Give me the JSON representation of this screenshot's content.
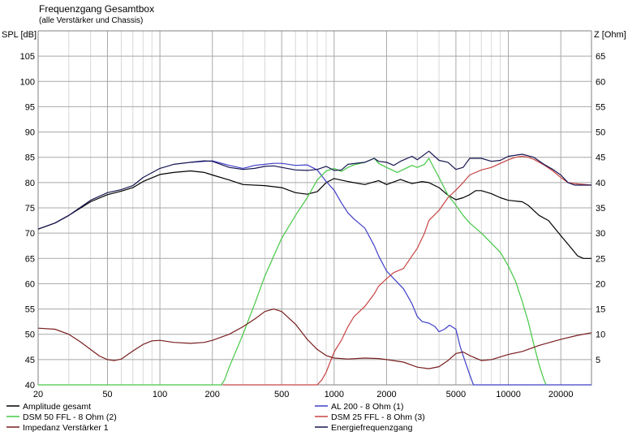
{
  "chart_data": {
    "type": "line",
    "title": "Frequenzgang Gesamtbox",
    "subtitle": "(alle Verstärker und Chassis)",
    "ylabel": "SPL [dB]",
    "y2label": "Z [Ohm]",
    "x_scale": "log",
    "xlim": [
      20,
      30000
    ],
    "ylim": [
      40,
      110
    ],
    "y2lim": [
      0,
      70
    ],
    "grid": true,
    "x_ticks": [
      20,
      50,
      100,
      200,
      500,
      1000,
      2000,
      5000,
      10000,
      20000
    ],
    "x_tick_labels": [
      "20",
      "50",
      "100",
      "200",
      "500",
      "1000",
      "2000",
      "5000",
      "10000",
      "20000"
    ],
    "y_ticks": [
      40,
      45,
      50,
      55,
      60,
      65,
      70,
      75,
      80,
      85,
      90,
      95,
      100,
      105
    ],
    "y_tick_labels": [
      "40",
      "45",
      "50",
      "55",
      "60",
      "65",
      "70",
      "75",
      "80",
      "85",
      "90",
      "95",
      "100",
      "105"
    ],
    "y2_tick_labels": [
      "5",
      "10",
      "15",
      "20",
      "25",
      "30",
      "35",
      "40",
      "45",
      "50",
      "55",
      "60",
      "65"
    ],
    "series": [
      {
        "name": "Amplitude gesamt",
        "color": "#000000",
        "axis": "left",
        "points": [
          [
            20,
            70.8
          ],
          [
            25,
            72
          ],
          [
            30,
            73.5
          ],
          [
            40,
            76.2
          ],
          [
            50,
            77.6
          ],
          [
            60,
            78.3
          ],
          [
            70,
            79
          ],
          [
            80,
            80.2
          ],
          [
            100,
            81.6
          ],
          [
            120,
            82
          ],
          [
            150,
            82.3
          ],
          [
            180,
            82
          ],
          [
            200,
            81.5
          ],
          [
            250,
            80.5
          ],
          [
            300,
            79.6
          ],
          [
            400,
            79.4
          ],
          [
            500,
            79
          ],
          [
            600,
            78
          ],
          [
            700,
            77.7
          ],
          [
            800,
            78.2
          ],
          [
            900,
            80
          ],
          [
            1000,
            80.8
          ],
          [
            1200,
            80.2
          ],
          [
            1500,
            79.6
          ],
          [
            1800,
            80.4
          ],
          [
            2000,
            79.6
          ],
          [
            2400,
            80.6
          ],
          [
            2800,
            79.8
          ],
          [
            3200,
            80.2
          ],
          [
            3500,
            80
          ],
          [
            4000,
            79
          ],
          [
            4500,
            77.5
          ],
          [
            5000,
            76.6
          ],
          [
            5500,
            77
          ],
          [
            6000,
            77.6
          ],
          [
            6500,
            78.4
          ],
          [
            7000,
            78.4
          ],
          [
            8000,
            77.8
          ],
          [
            9000,
            77
          ],
          [
            10000,
            76.5
          ],
          [
            12000,
            76.2
          ],
          [
            13000,
            75.5
          ],
          [
            15000,
            73.5
          ],
          [
            17000,
            72.5
          ],
          [
            20000,
            69.5
          ],
          [
            23000,
            67
          ],
          [
            25000,
            65.5
          ],
          [
            27000,
            65
          ],
          [
            30000,
            65
          ]
        ]
      },
      {
        "name": "AL 200 - 8 Ohm (1)",
        "color": "#3f3fc8",
        "axis": "left",
        "points": [
          [
            150,
            84
          ],
          [
            200,
            84.3
          ],
          [
            250,
            83.4
          ],
          [
            300,
            82.8
          ],
          [
            350,
            83.4
          ],
          [
            400,
            83.6
          ],
          [
            450,
            83.8
          ],
          [
            500,
            83.8
          ],
          [
            600,
            83.4
          ],
          [
            700,
            83.5
          ],
          [
            800,
            82.5
          ],
          [
            900,
            80.2
          ],
          [
            1000,
            78.5
          ],
          [
            1100,
            76
          ],
          [
            1200,
            74
          ],
          [
            1300,
            72.8
          ],
          [
            1500,
            71
          ],
          [
            1700,
            67.5
          ],
          [
            1800,
            65.5
          ],
          [
            2000,
            62.5
          ],
          [
            2200,
            61
          ],
          [
            2500,
            59
          ],
          [
            2700,
            57
          ],
          [
            2800,
            56
          ],
          [
            3000,
            53.5
          ],
          [
            3200,
            52.5
          ],
          [
            3500,
            52.2
          ],
          [
            3800,
            51.5
          ],
          [
            4000,
            50.5
          ],
          [
            4300,
            51
          ],
          [
            4600,
            51.8
          ],
          [
            5000,
            51
          ],
          [
            5300,
            47.5
          ],
          [
            5600,
            45
          ],
          [
            6000,
            42
          ],
          [
            6300,
            40
          ],
          [
            30000,
            40
          ]
        ]
      },
      {
        "name": "DSM 50 FFL - 8 Ohm (2)",
        "color": "#44c844",
        "axis": "left",
        "points": [
          [
            20,
            40
          ],
          [
            225,
            40
          ],
          [
            235,
            41
          ],
          [
            250,
            43.5
          ],
          [
            300,
            50
          ],
          [
            350,
            56
          ],
          [
            400,
            61.5
          ],
          [
            450,
            65.5
          ],
          [
            500,
            69
          ],
          [
            600,
            73.5
          ],
          [
            700,
            77
          ],
          [
            800,
            80.5
          ],
          [
            900,
            82.3
          ],
          [
            1000,
            82.8
          ],
          [
            1100,
            82.2
          ],
          [
            1200,
            83
          ],
          [
            1300,
            83.5
          ],
          [
            1500,
            84
          ],
          [
            1700,
            84.8
          ],
          [
            1800,
            83.8
          ],
          [
            2000,
            83
          ],
          [
            2300,
            82
          ],
          [
            2500,
            82.6
          ],
          [
            2800,
            83.4
          ],
          [
            3000,
            83
          ],
          [
            3300,
            83.6
          ],
          [
            3500,
            84.8
          ],
          [
            4000,
            81
          ],
          [
            4500,
            77.5
          ],
          [
            5000,
            75.5
          ],
          [
            5500,
            73.5
          ],
          [
            6000,
            72
          ],
          [
            7000,
            70
          ],
          [
            8000,
            68
          ],
          [
            9000,
            66.2
          ],
          [
            10000,
            63.5
          ],
          [
            11000,
            60.5
          ],
          [
            12000,
            56.5
          ],
          [
            13000,
            52.5
          ],
          [
            14000,
            48
          ],
          [
            15000,
            44
          ],
          [
            16000,
            41
          ],
          [
            16500,
            40
          ]
        ]
      },
      {
        "name": "DSM 25 FFL - 8 Ohm (3)",
        "color": "#c84444",
        "axis": "left",
        "points": [
          [
            230,
            40
          ],
          [
            800,
            40
          ],
          [
            850,
            41
          ],
          [
            900,
            42.5
          ],
          [
            1000,
            46.5
          ],
          [
            1100,
            48.8
          ],
          [
            1200,
            51.5
          ],
          [
            1300,
            53.5
          ],
          [
            1500,
            55.5
          ],
          [
            1700,
            58
          ],
          [
            1800,
            59.5
          ],
          [
            2000,
            61
          ],
          [
            2200,
            62.2
          ],
          [
            2500,
            63
          ],
          [
            2800,
            65.5
          ],
          [
            3000,
            67
          ],
          [
            3300,
            70
          ],
          [
            3500,
            72.5
          ],
          [
            4000,
            74.5
          ],
          [
            4500,
            77
          ],
          [
            5000,
            78.5
          ],
          [
            5500,
            80
          ],
          [
            6000,
            81.5
          ],
          [
            7000,
            82.5
          ],
          [
            8000,
            83
          ],
          [
            9000,
            83.8
          ],
          [
            10000,
            84.5
          ],
          [
            11000,
            85
          ],
          [
            12000,
            85.2
          ],
          [
            13000,
            85
          ],
          [
            14000,
            84.6
          ],
          [
            16000,
            83.5
          ],
          [
            18000,
            82.3
          ],
          [
            20000,
            81
          ],
          [
            22000,
            80
          ],
          [
            24000,
            79.8
          ],
          [
            30000,
            79.5
          ]
        ]
      },
      {
        "name": "Impedanz Verstärker 1",
        "color": "#7a1e1e",
        "axis": "right",
        "points": [
          [
            20,
            11.2
          ],
          [
            25,
            11
          ],
          [
            30,
            10
          ],
          [
            35,
            8.5
          ],
          [
            40,
            7
          ],
          [
            45,
            5.7
          ],
          [
            50,
            5
          ],
          [
            55,
            4.8
          ],
          [
            60,
            5.1
          ],
          [
            70,
            6.7
          ],
          [
            80,
            8
          ],
          [
            90,
            8.7
          ],
          [
            100,
            8.8
          ],
          [
            120,
            8.4
          ],
          [
            150,
            8.2
          ],
          [
            180,
            8.4
          ],
          [
            200,
            8.8
          ],
          [
            250,
            10
          ],
          [
            300,
            11.5
          ],
          [
            350,
            13
          ],
          [
            400,
            14.5
          ],
          [
            450,
            15
          ],
          [
            500,
            14.5
          ],
          [
            600,
            12
          ],
          [
            700,
            9
          ],
          [
            800,
            7
          ],
          [
            900,
            5.8
          ],
          [
            1000,
            5.3
          ],
          [
            1200,
            5.1
          ],
          [
            1500,
            5.3
          ],
          [
            1800,
            5.2
          ],
          [
            2000,
            5
          ],
          [
            2500,
            4.5
          ],
          [
            3000,
            3.5
          ],
          [
            3500,
            3.2
          ],
          [
            4000,
            3.6
          ],
          [
            4500,
            4.8
          ],
          [
            5000,
            6.2
          ],
          [
            5500,
            6.5
          ],
          [
            6000,
            5.8
          ],
          [
            7000,
            4.8
          ],
          [
            8000,
            5
          ],
          [
            10000,
            6
          ],
          [
            12000,
            6.6
          ],
          [
            15000,
            7.8
          ],
          [
            20000,
            9
          ],
          [
            25000,
            9.8
          ],
          [
            30000,
            10.3
          ]
        ]
      },
      {
        "name": "Energiefrequenzgang",
        "color": "#151550",
        "axis": "left",
        "points": [
          [
            20,
            70.8
          ],
          [
            25,
            72
          ],
          [
            30,
            73.5
          ],
          [
            40,
            76.5
          ],
          [
            50,
            78
          ],
          [
            60,
            78.6
          ],
          [
            70,
            79.4
          ],
          [
            80,
            81
          ],
          [
            100,
            82.8
          ],
          [
            120,
            83.6
          ],
          [
            150,
            84
          ],
          [
            180,
            84.3
          ],
          [
            200,
            84.2
          ],
          [
            250,
            83
          ],
          [
            300,
            82.6
          ],
          [
            350,
            82.8
          ],
          [
            400,
            83.2
          ],
          [
            450,
            83.3
          ],
          [
            500,
            83
          ],
          [
            600,
            82.5
          ],
          [
            700,
            82.4
          ],
          [
            800,
            82.6
          ],
          [
            900,
            83.2
          ],
          [
            1000,
            82.4
          ],
          [
            1100,
            82.5
          ],
          [
            1200,
            83.6
          ],
          [
            1500,
            84
          ],
          [
            1700,
            84.8
          ],
          [
            1800,
            84.2
          ],
          [
            2000,
            84
          ],
          [
            2200,
            83.4
          ],
          [
            2400,
            84.2
          ],
          [
            2800,
            85.2
          ],
          [
            3000,
            84.5
          ],
          [
            3500,
            86.2
          ],
          [
            4000,
            84.4
          ],
          [
            4500,
            84
          ],
          [
            5000,
            82.6
          ],
          [
            5500,
            83
          ],
          [
            6000,
            84.8
          ],
          [
            7000,
            84.8
          ],
          [
            8000,
            84.2
          ],
          [
            9000,
            84.4
          ],
          [
            10000,
            85.2
          ],
          [
            12000,
            85.6
          ],
          [
            14000,
            85
          ],
          [
            16000,
            83.6
          ],
          [
            18000,
            82.6
          ],
          [
            20000,
            81.5
          ],
          [
            22000,
            80
          ],
          [
            24000,
            79.5
          ],
          [
            30000,
            79.5
          ]
        ]
      }
    ],
    "legend": {
      "placement": "bottom",
      "entries": [
        "Amplitude gesamt",
        "AL 200 - 8 Ohm (1)",
        "DSM 50 FFL - 8 Ohm (2)",
        "DSM 25 FFL - 8 Ohm (3)",
        "Impedanz Verstärker 1",
        "Energiefrequenzgang"
      ]
    }
  }
}
